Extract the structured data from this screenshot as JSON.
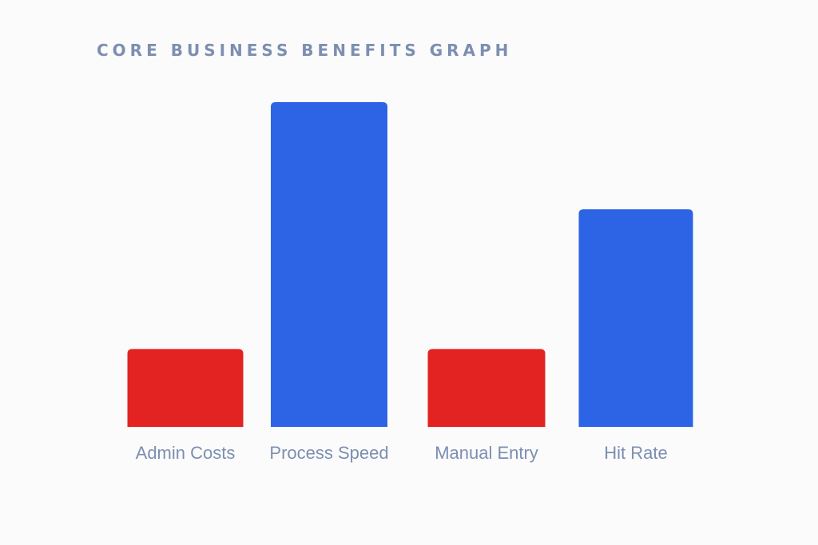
{
  "chart_data": {
    "type": "bar",
    "title": "CORE BUSINESS BENEFITS GRAPH",
    "xlabel": "",
    "ylabel": "",
    "categories": [
      "Admin Costs",
      "Process Speed",
      "Manual Entry",
      "Hit Rate"
    ],
    "values": [
      24,
      100,
      24,
      67
    ],
    "ylim": [
      0,
      100
    ],
    "grid": false,
    "legend": "none",
    "bar_colors": [
      "#e32322",
      "#2d64e5",
      "#e32322",
      "#2d64e5"
    ],
    "colors": {
      "decrease": "#e32322",
      "increase": "#2d64e5",
      "text": "#7c8fb0",
      "background": "#fbfbfc"
    }
  }
}
